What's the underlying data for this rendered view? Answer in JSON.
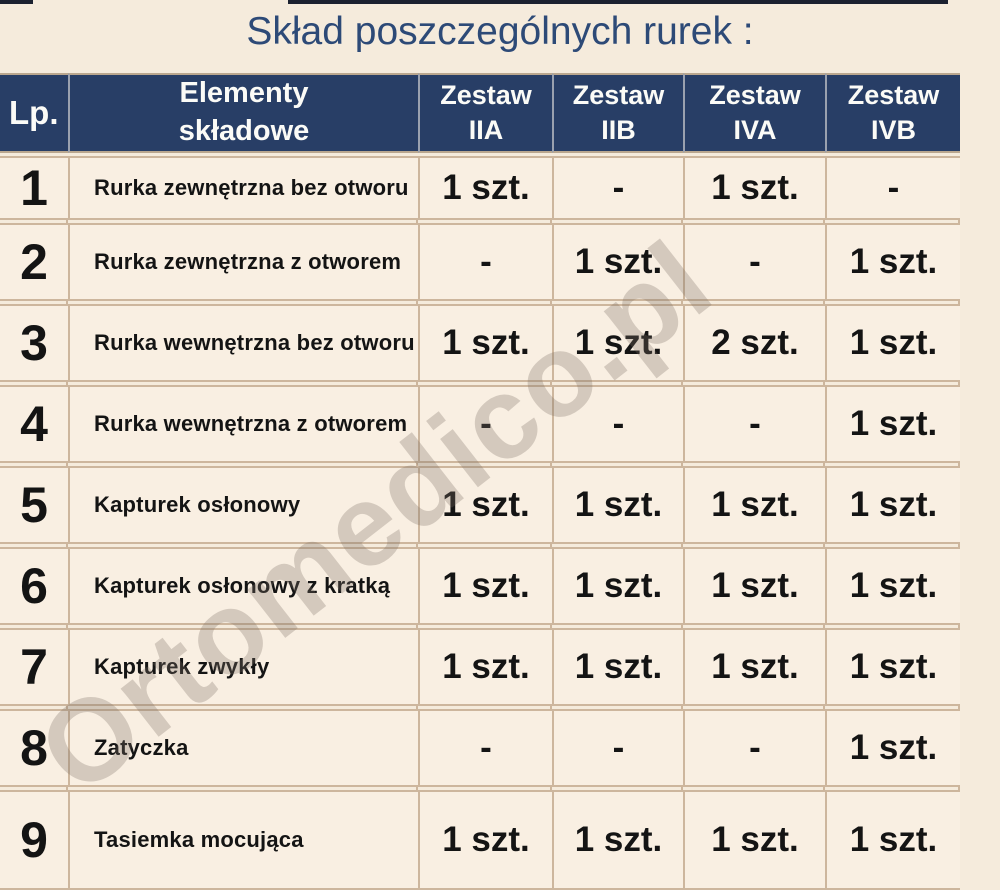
{
  "page": {
    "title": "Skład poszczególnych rurek :",
    "watermark": "Ortomedico.pl",
    "colors": {
      "page_background": "#f5ebdc",
      "cell_background": "#f9efe2",
      "header_background": "#283e66",
      "header_text": "#fbfbf7",
      "grid_border": "#cdb69d",
      "title_text": "#2d4a77",
      "body_text": "#141414"
    }
  },
  "chart_data": {
    "type": "table",
    "title": "Skład poszczególnych rurek :",
    "columns": [
      [
        "Lp."
      ],
      [
        "Elementy",
        "składowe"
      ],
      [
        "Zestaw",
        "IIA"
      ],
      [
        "Zestaw",
        "IIB"
      ],
      [
        "Zestaw",
        "IVA"
      ],
      [
        "Zestaw",
        "IVB"
      ]
    ],
    "rows": [
      [
        "1",
        "Rurka zewnętrzna bez otworu",
        "1 szt.",
        "-",
        "1 szt.",
        "-"
      ],
      [
        "2",
        "Rurka zewnętrzna z otworem",
        "-",
        "1 szt.",
        "-",
        "1 szt."
      ],
      [
        "3",
        "Rurka wewnętrzna bez otworu",
        "1 szt.",
        "1 szt.",
        "2 szt.",
        "1 szt."
      ],
      [
        "4",
        "Rurka wewnętrzna z otworem",
        "-",
        "-",
        "-",
        "1 szt."
      ],
      [
        "5",
        "Kapturek osłonowy",
        "1 szt.",
        "1 szt.",
        "1 szt.",
        "1 szt."
      ],
      [
        "6",
        "Kapturek osłonowy z kratką",
        "1 szt.",
        "1 szt.",
        "1 szt.",
        "1 szt."
      ],
      [
        "7",
        "Kapturek zwykły",
        "1 szt.",
        "1 szt.",
        "1 szt.",
        "1 szt."
      ],
      [
        "8",
        "Zatyczka",
        "-",
        "-",
        "-",
        "1 szt."
      ],
      [
        "9",
        "Tasiemka mocująca",
        "1 szt.",
        "1 szt.",
        "1 szt.",
        "1 szt."
      ]
    ]
  }
}
